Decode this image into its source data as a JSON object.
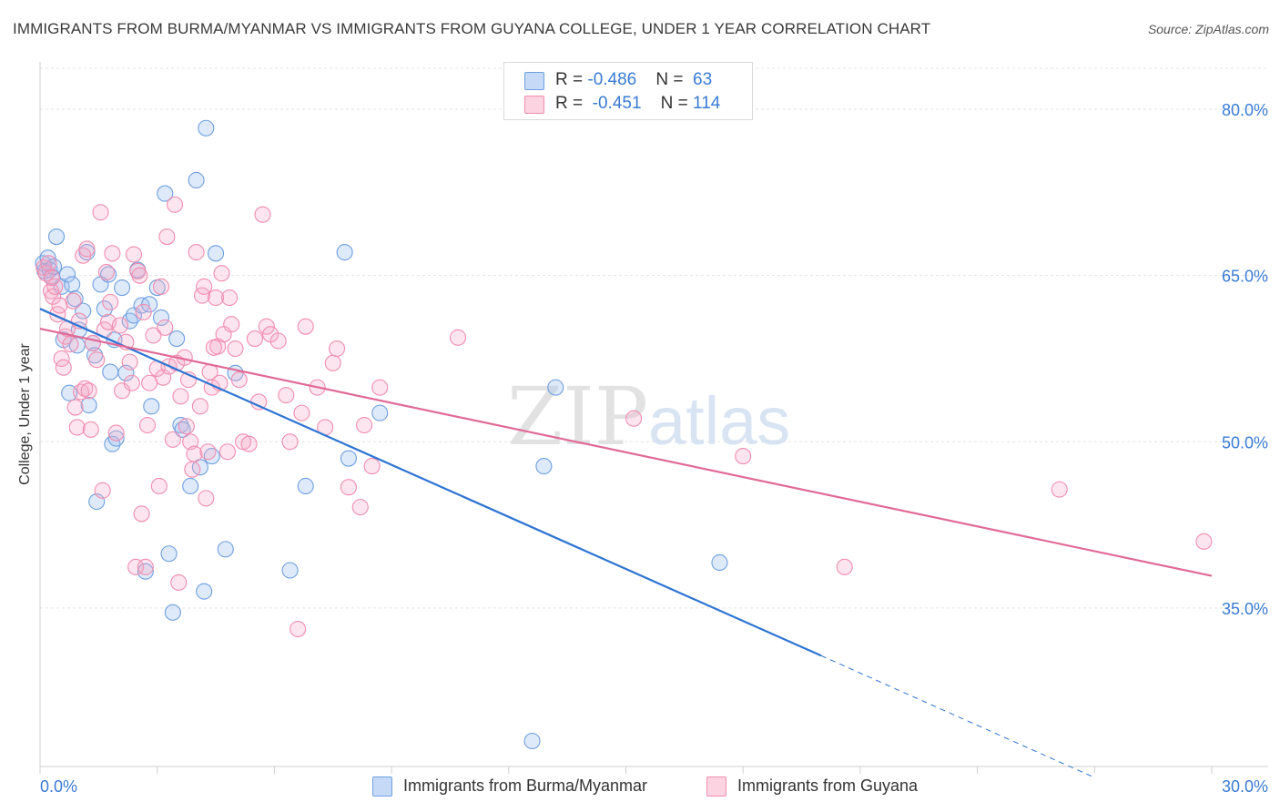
{
  "title": "IMMIGRANTS FROM BURMA/MYANMAR VS IMMIGRANTS FROM GUYANA COLLEGE, UNDER 1 YEAR CORRELATION CHART",
  "source": "Source: ZipAtlas.com",
  "watermark": {
    "part1": "ZIP",
    "part2": "atlas"
  },
  "legend": {
    "rows": [
      {
        "r_label": "R = ",
        "r_value": "-0.486",
        "n_label": "N = ",
        "n_value": "63",
        "color": "#6f9fe0"
      },
      {
        "r_label": "R = ",
        "r_value": "-0.451",
        "n_label": "N = ",
        "n_value": "114",
        "color": "#f08db0"
      }
    ]
  },
  "chart_data": {
    "type": "scatter",
    "title": "IMMIGRANTS FROM BURMA/MYANMAR VS IMMIGRANTS FROM GUYANA COLLEGE, UNDER 1 YEAR CORRELATION CHART",
    "xlabel": "",
    "ylabel": "College, Under 1 year",
    "xlim": [
      0,
      30
    ],
    "ylim": [
      20.7,
      83.7
    ],
    "x_tick_labels": [
      "0.0%",
      "30.0%"
    ],
    "y_ticks": [
      35,
      50,
      65,
      80
    ],
    "y_tick_labels": [
      "35.0%",
      "50.0%",
      "65.0%",
      "80.0%"
    ],
    "grid": true,
    "legend_position": "top-center",
    "series": [
      {
        "name": "Immigrants from Burma/Myanmar",
        "color": "#6f9fe0",
        "line_color": "#2e74d4",
        "trend": {
          "x0": 0.0,
          "y0": 62.0,
          "x1": 20.0,
          "y1": 30.7,
          "dash_to_x": 27.0,
          "dash_to_y": 19.7
        },
        "points": [
          [
            0.08,
            66.1
          ],
          [
            0.12,
            65.4
          ],
          [
            0.2,
            66.6
          ],
          [
            0.25,
            65.5
          ],
          [
            0.3,
            64.9
          ],
          [
            0.35,
            65.8
          ],
          [
            0.42,
            68.5
          ],
          [
            0.55,
            64.0
          ],
          [
            0.6,
            59.2
          ],
          [
            0.7,
            65.1
          ],
          [
            0.75,
            54.4
          ],
          [
            0.82,
            64.2
          ],
          [
            0.9,
            62.9
          ],
          [
            0.95,
            58.7
          ],
          [
            1.0,
            60.1
          ],
          [
            1.1,
            61.8
          ],
          [
            1.2,
            67.1
          ],
          [
            1.25,
            53.3
          ],
          [
            1.35,
            58.9
          ],
          [
            1.4,
            57.8
          ],
          [
            1.45,
            44.6
          ],
          [
            1.55,
            64.2
          ],
          [
            1.65,
            62.0
          ],
          [
            1.75,
            65.1
          ],
          [
            1.8,
            56.3
          ],
          [
            1.85,
            49.8
          ],
          [
            1.9,
            59.2
          ],
          [
            1.95,
            50.3
          ],
          [
            2.1,
            63.9
          ],
          [
            2.2,
            56.2
          ],
          [
            2.3,
            60.9
          ],
          [
            2.4,
            61.4
          ],
          [
            2.5,
            65.5
          ],
          [
            2.6,
            62.3
          ],
          [
            2.7,
            38.3
          ],
          [
            2.8,
            62.4
          ],
          [
            2.85,
            53.2
          ],
          [
            3.0,
            63.9
          ],
          [
            3.1,
            61.2
          ],
          [
            3.2,
            72.4
          ],
          [
            3.3,
            39.9
          ],
          [
            3.4,
            34.6
          ],
          [
            3.5,
            59.3
          ],
          [
            3.6,
            51.5
          ],
          [
            3.65,
            51.1
          ],
          [
            3.85,
            46.0
          ],
          [
            4.0,
            73.6
          ],
          [
            4.1,
            47.7
          ],
          [
            4.2,
            36.5
          ],
          [
            4.25,
            78.3
          ],
          [
            4.4,
            48.7
          ],
          [
            4.5,
            67.0
          ],
          [
            4.75,
            40.3
          ],
          [
            5.0,
            56.2
          ],
          [
            6.4,
            38.4
          ],
          [
            6.8,
            46.0
          ],
          [
            7.8,
            67.1
          ],
          [
            7.9,
            48.5
          ],
          [
            8.7,
            52.6
          ],
          [
            12.6,
            23.0
          ],
          [
            12.9,
            47.8
          ],
          [
            13.2,
            54.9
          ],
          [
            17.4,
            39.1
          ]
        ]
      },
      {
        "name": "Immigrants from Guyana",
        "color": "#f08db0",
        "line_color": "#e06a96",
        "trend": {
          "x0": 0.0,
          "y0": 60.2,
          "x1": 30.0,
          "y1": 37.9
        },
        "points": [
          [
            0.1,
            65.7
          ],
          [
            0.15,
            65.2
          ],
          [
            0.22,
            66.1
          ],
          [
            0.28,
            63.6
          ],
          [
            0.33,
            63.1
          ],
          [
            0.38,
            64.0
          ],
          [
            0.45,
            61.5
          ],
          [
            0.5,
            62.3
          ],
          [
            0.55,
            57.5
          ],
          [
            0.6,
            56.7
          ],
          [
            0.65,
            59.5
          ],
          [
            0.7,
            60.2
          ],
          [
            0.78,
            58.8
          ],
          [
            0.85,
            62.7
          ],
          [
            0.9,
            53.1
          ],
          [
            0.95,
            51.3
          ],
          [
            1.05,
            54.5
          ],
          [
            1.1,
            66.8
          ],
          [
            1.15,
            54.8
          ],
          [
            1.2,
            67.4
          ],
          [
            1.25,
            54.6
          ],
          [
            1.3,
            51.1
          ],
          [
            1.35,
            58.9
          ],
          [
            1.45,
            57.4
          ],
          [
            1.55,
            70.7
          ],
          [
            1.6,
            45.6
          ],
          [
            1.65,
            60.1
          ],
          [
            1.7,
            65.3
          ],
          [
            1.75,
            60.8
          ],
          [
            1.8,
            62.6
          ],
          [
            1.85,
            67.0
          ],
          [
            1.95,
            50.8
          ],
          [
            2.05,
            60.5
          ],
          [
            2.1,
            54.6
          ],
          [
            2.2,
            59.0
          ],
          [
            2.3,
            57.2
          ],
          [
            2.35,
            55.3
          ],
          [
            2.4,
            66.9
          ],
          [
            2.45,
            38.7
          ],
          [
            2.5,
            65.4
          ],
          [
            2.55,
            65.0
          ],
          [
            2.6,
            43.5
          ],
          [
            2.65,
            61.7
          ],
          [
            2.7,
            38.7
          ],
          [
            2.75,
            51.5
          ],
          [
            2.8,
            55.3
          ],
          [
            2.9,
            59.6
          ],
          [
            3.0,
            56.6
          ],
          [
            3.05,
            46.0
          ],
          [
            3.1,
            64.0
          ],
          [
            3.15,
            55.8
          ],
          [
            3.2,
            60.3
          ],
          [
            3.25,
            68.5
          ],
          [
            3.3,
            56.8
          ],
          [
            3.4,
            50.2
          ],
          [
            3.45,
            71.4
          ],
          [
            3.5,
            57.1
          ],
          [
            3.55,
            37.3
          ],
          [
            3.6,
            54.1
          ],
          [
            3.7,
            57.6
          ],
          [
            3.8,
            55.6
          ],
          [
            3.85,
            50.0
          ],
          [
            3.9,
            47.5
          ],
          [
            3.95,
            48.9
          ],
          [
            4.0,
            67.1
          ],
          [
            4.1,
            53.2
          ],
          [
            4.15,
            63.2
          ],
          [
            4.2,
            64.0
          ],
          [
            4.25,
            44.9
          ],
          [
            4.3,
            49.1
          ],
          [
            4.35,
            56.3
          ],
          [
            4.4,
            54.9
          ],
          [
            4.5,
            63.0
          ],
          [
            4.55,
            58.6
          ],
          [
            4.6,
            55.3
          ],
          [
            4.65,
            65.2
          ],
          [
            4.7,
            59.7
          ],
          [
            4.8,
            49.1
          ],
          [
            4.85,
            63.0
          ],
          [
            4.9,
            60.6
          ],
          [
            5.0,
            58.4
          ],
          [
            5.1,
            55.6
          ],
          [
            5.2,
            50.0
          ],
          [
            5.35,
            49.8
          ],
          [
            5.5,
            59.3
          ],
          [
            5.6,
            53.6
          ],
          [
            5.7,
            70.5
          ],
          [
            5.8,
            60.4
          ],
          [
            5.9,
            59.7
          ],
          [
            6.1,
            59.1
          ],
          [
            6.3,
            54.2
          ],
          [
            6.4,
            50.0
          ],
          [
            6.6,
            33.1
          ],
          [
            6.7,
            52.6
          ],
          [
            6.8,
            60.4
          ],
          [
            7.1,
            54.9
          ],
          [
            7.3,
            51.3
          ],
          [
            7.5,
            57.1
          ],
          [
            7.6,
            58.4
          ],
          [
            7.9,
            45.9
          ],
          [
            8.2,
            44.1
          ],
          [
            8.3,
            51.5
          ],
          [
            8.5,
            47.8
          ],
          [
            8.7,
            54.9
          ],
          [
            10.7,
            59.4
          ],
          [
            15.2,
            52.1
          ],
          [
            18.0,
            48.7
          ],
          [
            20.6,
            38.7
          ],
          [
            26.1,
            45.7
          ],
          [
            29.8,
            41.0
          ],
          [
            0.3,
            64.8
          ],
          [
            1.0,
            60.9
          ],
          [
            3.75,
            51.4
          ],
          [
            4.45,
            58.5
          ]
        ]
      }
    ]
  }
}
